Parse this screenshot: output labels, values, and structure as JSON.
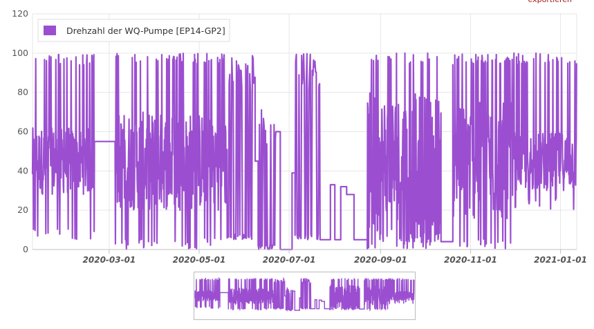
{
  "export_label": "exportieren",
  "chart_data": {
    "type": "line",
    "title": "",
    "xlabel": "",
    "ylabel": "",
    "ylim": [
      0,
      120
    ],
    "yticks": [
      "0",
      "20",
      "40",
      "60",
      "80",
      "100",
      "120"
    ],
    "xlim": [
      "2020-01-09",
      "2021-01-12"
    ],
    "xticks": [
      "2020-03-01",
      "2020-05-01",
      "2020-07-01",
      "2020-09-01",
      "2020-11-01",
      "2021-01-01"
    ],
    "grid": true,
    "legend_position": "top-left",
    "colors": {
      "series": "#9b4fd0",
      "grid": "#e6e6e6",
      "axis": "#c0c0c0"
    },
    "series": [
      {
        "name": "Drehzahl der WQ-Pumpe [EP14-GP2]",
        "segments": [
          {
            "start": "2020-01-09",
            "end": "2020-02-20",
            "behavior": "dense",
            "low": 5,
            "high": 100,
            "band_low": 28,
            "band_high": 62
          },
          {
            "start": "2020-02-20",
            "end": "2020-03-05",
            "behavior": "flat",
            "value": 55
          },
          {
            "start": "2020-03-05",
            "end": "2020-05-20",
            "behavior": "dense",
            "low": 0,
            "high": 100,
            "band_low": 20,
            "band_high": 70
          },
          {
            "start": "2020-05-20",
            "end": "2020-06-08",
            "behavior": "spiky",
            "low": 0,
            "high": 100,
            "base": 5
          },
          {
            "start": "2020-06-08",
            "end": "2020-06-10",
            "behavior": "flat",
            "value": 45
          },
          {
            "start": "2020-06-10",
            "end": "2020-06-22",
            "behavior": "spiky",
            "low": 0,
            "high": 72,
            "base": 0
          },
          {
            "start": "2020-06-22",
            "end": "2020-06-25",
            "behavior": "flat",
            "value": 60
          },
          {
            "start": "2020-06-25",
            "end": "2020-07-03",
            "behavior": "flat",
            "value": 0
          },
          {
            "start": "2020-07-03",
            "end": "2020-07-05",
            "behavior": "flat",
            "value": 39
          },
          {
            "start": "2020-07-05",
            "end": "2020-07-22",
            "behavior": "spiky",
            "low": 0,
            "high": 100,
            "base": 5
          },
          {
            "start": "2020-07-22",
            "end": "2020-07-29",
            "behavior": "flat",
            "value": 5
          },
          {
            "start": "2020-07-29",
            "end": "2020-08-01",
            "behavior": "flat",
            "value": 33
          },
          {
            "start": "2020-08-01",
            "end": "2020-08-05",
            "behavior": "flat",
            "value": 5
          },
          {
            "start": "2020-08-05",
            "end": "2020-08-09",
            "behavior": "flat",
            "value": 32
          },
          {
            "start": "2020-08-09",
            "end": "2020-08-14",
            "behavior": "flat",
            "value": 28
          },
          {
            "start": "2020-08-14",
            "end": "2020-08-23",
            "behavior": "flat",
            "value": 5
          },
          {
            "start": "2020-08-23",
            "end": "2020-10-12",
            "behavior": "dense",
            "low": 0,
            "high": 100,
            "band_low": 5,
            "band_high": 80
          },
          {
            "start": "2020-10-12",
            "end": "2020-10-20",
            "behavior": "flat",
            "value": 4
          },
          {
            "start": "2020-10-20",
            "end": "2020-11-30",
            "behavior": "dense",
            "low": 0,
            "high": 100,
            "band_low": 15,
            "band_high": 75
          },
          {
            "start": "2020-11-30",
            "end": "2021-01-12",
            "behavior": "dense",
            "low": 20,
            "high": 100,
            "band_low": 30,
            "band_high": 60
          }
        ]
      }
    ],
    "navigator": {
      "shown": true
    }
  }
}
